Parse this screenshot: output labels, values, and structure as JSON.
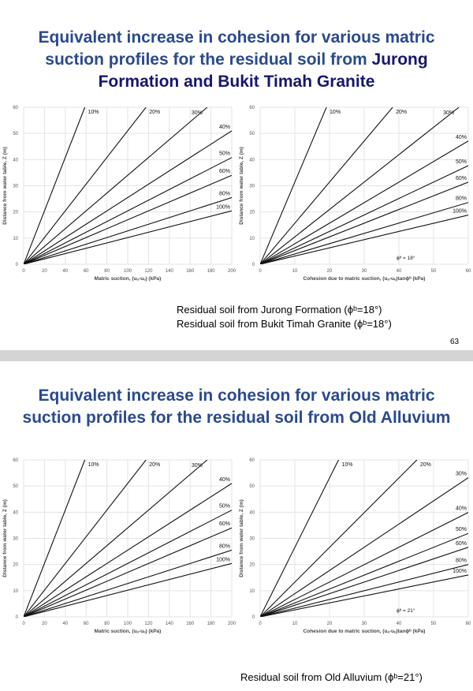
{
  "slides": [
    {
      "title_part1": "Equivalent increase in cohesion for various matric suction profiles for the residual soil from ",
      "title_part2": "Jurong Formation and Bukit Timah Granite",
      "captions": [
        "Residual soil from Jurong Formation (ϕᵇ=18°)",
        "Residual soil from Bukit Timah Granite (ϕᵇ=18°)"
      ],
      "page_number": "63"
    },
    {
      "title_part1": "Equivalent increase in cohesion for various matric suction profiles for the residual soil from Old Alluvium",
      "title_part2": "",
      "captions": [
        "Residual soil from Old Alluvium (ϕᵇ=21°)"
      ],
      "page_number": ""
    }
  ],
  "chart_data": [
    {
      "type": "line",
      "xlabel": "Matric suction, (uₐ-uᵤ) (kPa)",
      "ylabel": "Distance from water table, Z (m)",
      "xlim": [
        0,
        200
      ],
      "ylim": [
        0,
        60
      ],
      "xticks": [
        0,
        20,
        40,
        60,
        80,
        100,
        120,
        140,
        160,
        180,
        200
      ],
      "yticks": [
        0,
        10,
        20,
        30,
        40,
        50,
        60
      ],
      "grid": true,
      "annotation": "",
      "series": [
        {
          "name": "10%",
          "x": [
            0,
            58.8
          ],
          "y": [
            0,
            60
          ]
        },
        {
          "name": "20%",
          "x": [
            0,
            117.6
          ],
          "y": [
            0,
            60
          ]
        },
        {
          "name": "30%",
          "x": [
            0,
            176.4
          ],
          "y": [
            0,
            60
          ]
        },
        {
          "name": "40%",
          "x": [
            0,
            200
          ],
          "y": [
            0,
            51
          ]
        },
        {
          "name": "50%",
          "x": [
            0,
            200
          ],
          "y": [
            0,
            40.8
          ]
        },
        {
          "name": "60%",
          "x": [
            0,
            200
          ],
          "y": [
            0,
            34
          ]
        },
        {
          "name": "80%",
          "x": [
            0,
            200
          ],
          "y": [
            0,
            25.5
          ]
        },
        {
          "name": "100%",
          "x": [
            0,
            200
          ],
          "y": [
            0,
            20.4
          ]
        }
      ]
    },
    {
      "type": "line",
      "xlabel": "Cohesion due to matric suction, (uₐ-uᵤ)tanϕᵇ (kPa)",
      "ylabel": "Distance from water table, Z (m)",
      "xlim": [
        0,
        60
      ],
      "ylim": [
        0,
        60
      ],
      "xticks": [
        0,
        10,
        20,
        30,
        40,
        50,
        60
      ],
      "yticks": [
        0,
        10,
        20,
        30,
        40,
        50,
        60
      ],
      "grid": true,
      "annotation": "ϕᵇ = 18°",
      "series": [
        {
          "name": "10%",
          "x": [
            0,
            19.1
          ],
          "y": [
            0,
            60
          ]
        },
        {
          "name": "20%",
          "x": [
            0,
            38.2
          ],
          "y": [
            0,
            60
          ]
        },
        {
          "name": "30%",
          "x": [
            0,
            57.3
          ],
          "y": [
            0,
            60
          ]
        },
        {
          "name": "40%",
          "x": [
            0,
            60
          ],
          "y": [
            0,
            47.1
          ]
        },
        {
          "name": "50%",
          "x": [
            0,
            60
          ],
          "y": [
            0,
            37.7
          ]
        },
        {
          "name": "60%",
          "x": [
            0,
            60
          ],
          "y": [
            0,
            31.4
          ]
        },
        {
          "name": "80%",
          "x": [
            0,
            60
          ],
          "y": [
            0,
            23.6
          ]
        },
        {
          "name": "100%",
          "x": [
            0,
            60
          ],
          "y": [
            0,
            18.8
          ]
        }
      ]
    },
    {
      "type": "line",
      "xlabel": "Matric suction, (uₐ-uᵤ) (kPa)",
      "ylabel": "Distance from water table, Z (m)",
      "xlim": [
        0,
        200
      ],
      "ylim": [
        0,
        60
      ],
      "xticks": [
        0,
        20,
        40,
        60,
        80,
        100,
        120,
        140,
        160,
        180,
        200
      ],
      "yticks": [
        0,
        10,
        20,
        30,
        40,
        50,
        60
      ],
      "grid": true,
      "annotation": "",
      "series": [
        {
          "name": "10%",
          "x": [
            0,
            58.8
          ],
          "y": [
            0,
            60
          ]
        },
        {
          "name": "20%",
          "x": [
            0,
            117.6
          ],
          "y": [
            0,
            60
          ]
        },
        {
          "name": "30%",
          "x": [
            0,
            176.4
          ],
          "y": [
            0,
            60
          ]
        },
        {
          "name": "40%",
          "x": [
            0,
            200
          ],
          "y": [
            0,
            51
          ]
        },
        {
          "name": "50%",
          "x": [
            0,
            200
          ],
          "y": [
            0,
            40.8
          ]
        },
        {
          "name": "60%",
          "x": [
            0,
            200
          ],
          "y": [
            0,
            34
          ]
        },
        {
          "name": "80%",
          "x": [
            0,
            200
          ],
          "y": [
            0,
            25.5
          ]
        },
        {
          "name": "100%",
          "x": [
            0,
            200
          ],
          "y": [
            0,
            20.4
          ]
        }
      ]
    },
    {
      "type": "line",
      "xlabel": "Cohesion due to matric suction, (uₐ-uᵤ)tanϕᵇ (kPa)",
      "ylabel": "Distance from water table, Z (m)",
      "xlim": [
        0,
        60
      ],
      "ylim": [
        0,
        60
      ],
      "xticks": [
        0,
        10,
        20,
        30,
        40,
        50,
        60
      ],
      "yticks": [
        0,
        10,
        20,
        30,
        40,
        50,
        60
      ],
      "grid": true,
      "annotation": "ϕᵇ = 21°",
      "series": [
        {
          "name": "10%",
          "x": [
            0,
            22.6
          ],
          "y": [
            0,
            60
          ]
        },
        {
          "name": "20%",
          "x": [
            0,
            45.2
          ],
          "y": [
            0,
            60
          ]
        },
        {
          "name": "30%",
          "x": [
            0,
            60
          ],
          "y": [
            0,
            53.2
          ]
        },
        {
          "name": "40%",
          "x": [
            0,
            60
          ],
          "y": [
            0,
            39.9
          ]
        },
        {
          "name": "50%",
          "x": [
            0,
            60
          ],
          "y": [
            0,
            31.9
          ]
        },
        {
          "name": "60%",
          "x": [
            0,
            60
          ],
          "y": [
            0,
            26.6
          ]
        },
        {
          "name": "80%",
          "x": [
            0,
            60
          ],
          "y": [
            0,
            20
          ]
        },
        {
          "name": "100%",
          "x": [
            0,
            60
          ],
          "y": [
            0,
            16
          ]
        }
      ]
    }
  ]
}
